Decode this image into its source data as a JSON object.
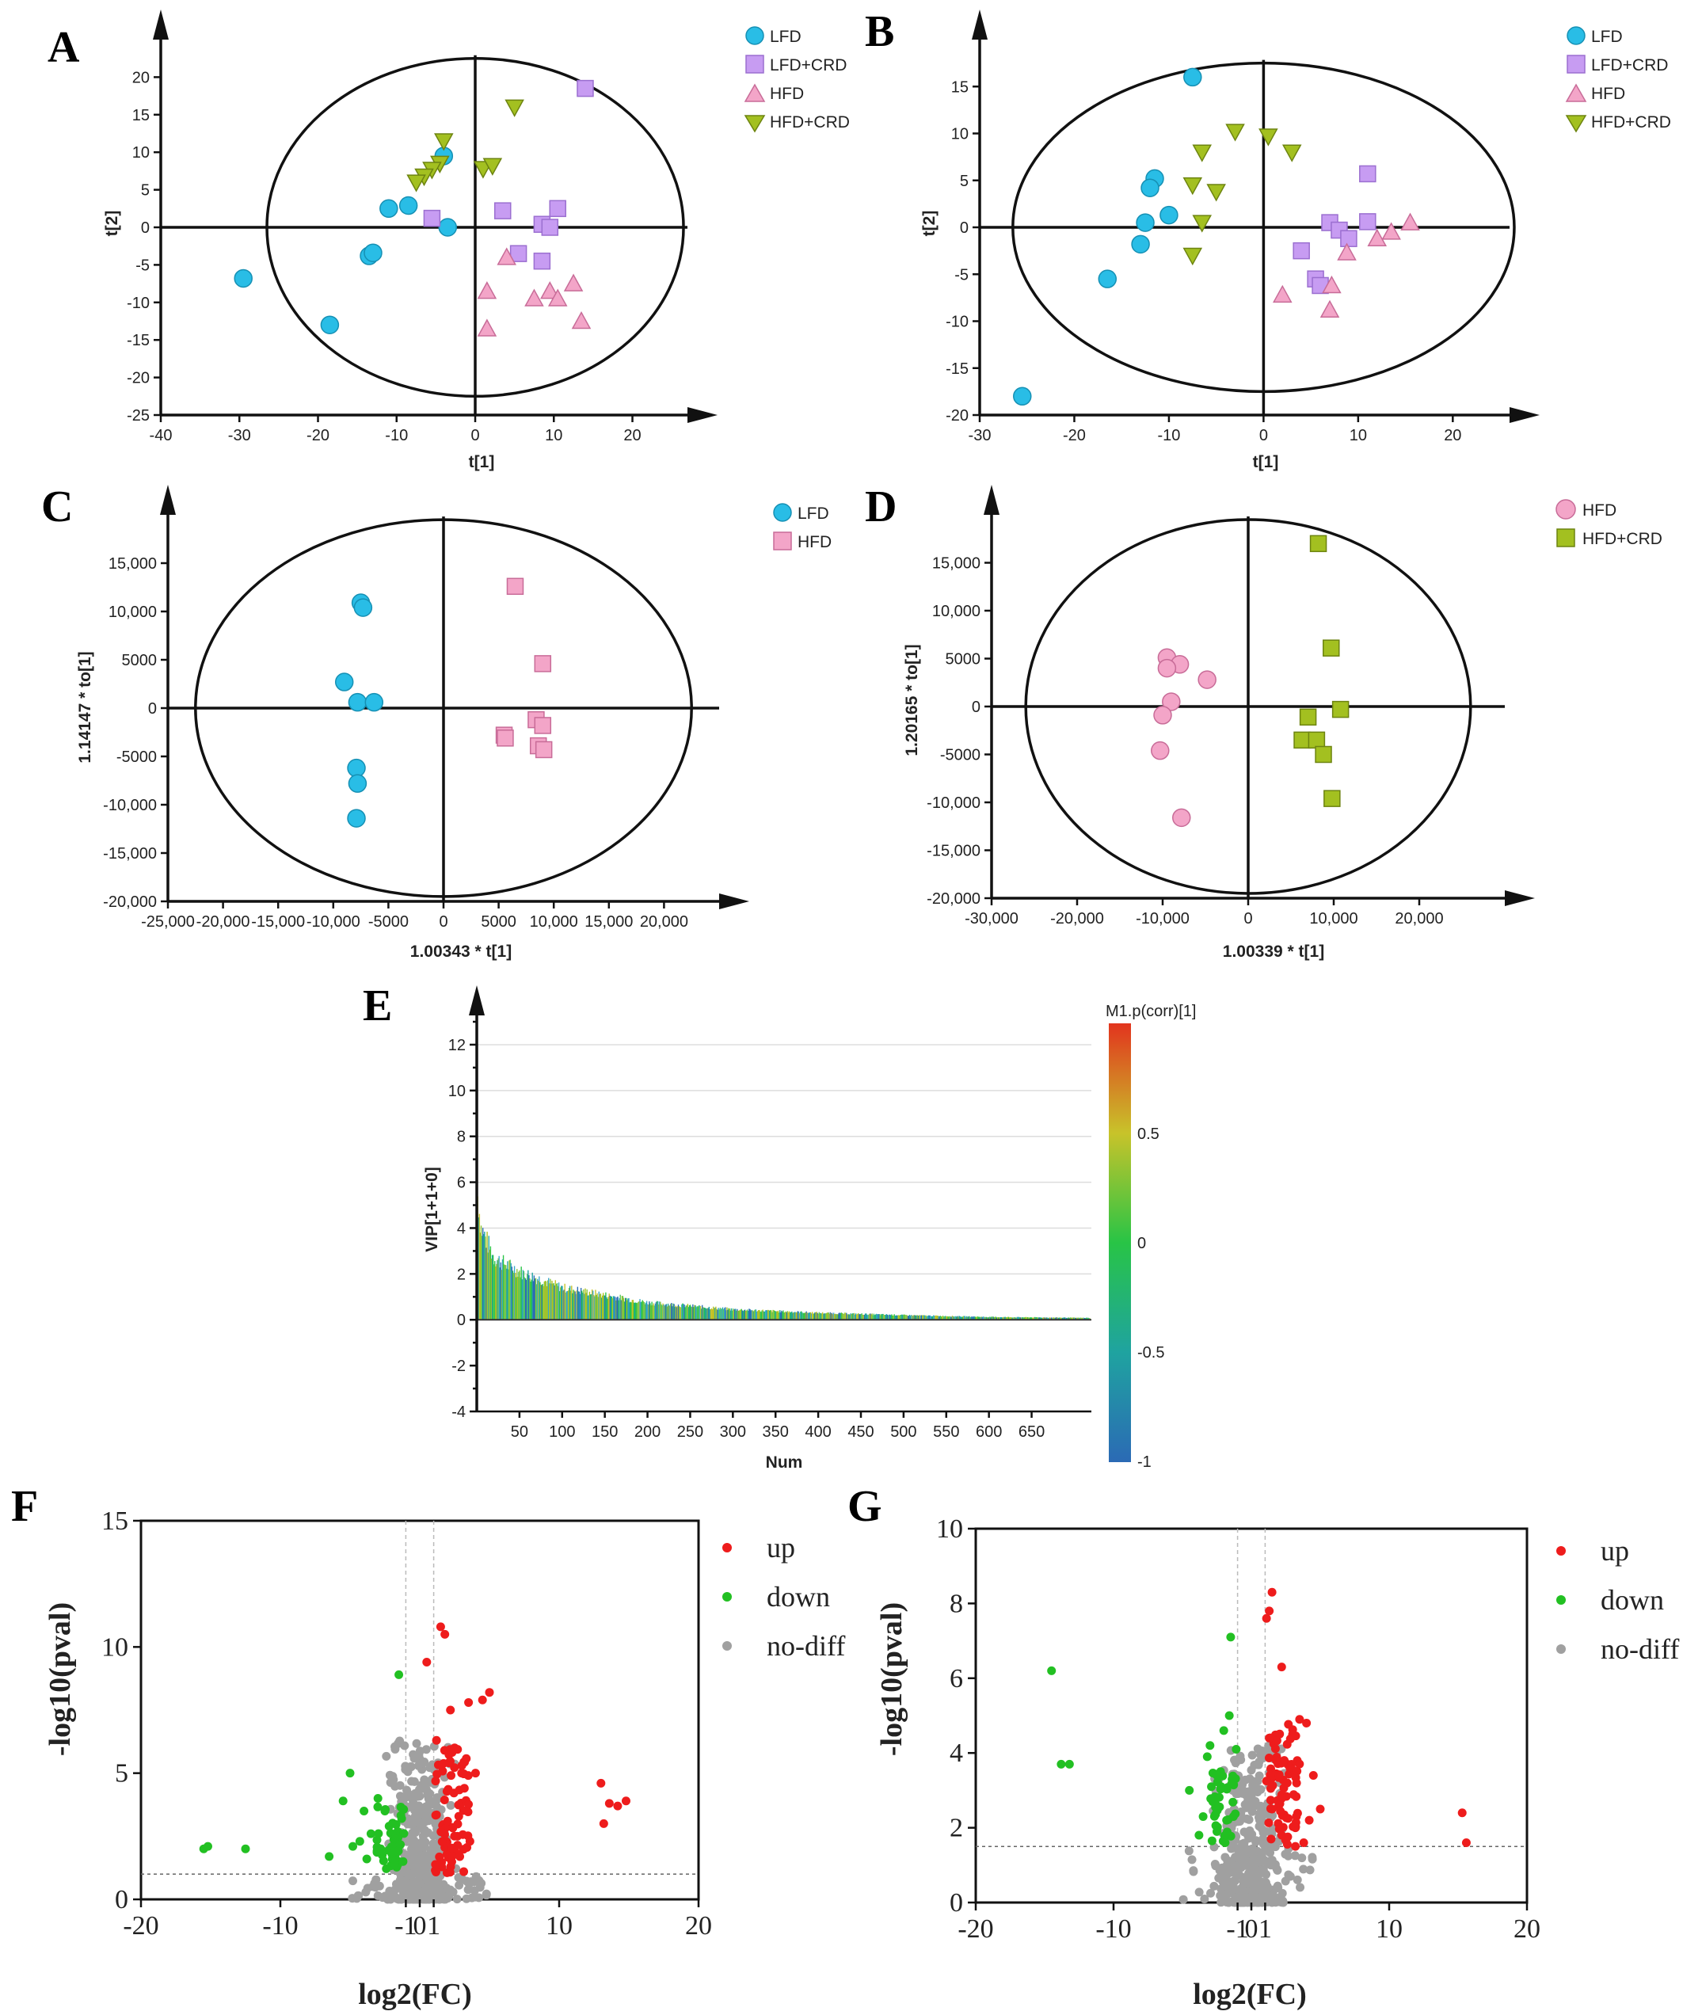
{
  "chart_data": [
    {
      "id": "A",
      "type": "scatter",
      "label": "A",
      "xlabel": "t[1]",
      "ylabel": "t[2]",
      "xlim": [
        -40,
        27
      ],
      "ylim": [
        -25,
        25
      ],
      "xticks": [
        "-40",
        "-30",
        "-20",
        "-10",
        "0",
        "10",
        "20"
      ],
      "yticks": [
        "-25",
        "-20",
        "-15",
        "-10",
        "-5",
        "0",
        "5",
        "10",
        "15",
        "20"
      ],
      "ellipse": {
        "cx": 0,
        "cy": 0,
        "rx": 26.5,
        "ry": 22.5
      },
      "series": [
        {
          "name": "LFD",
          "marker": "circle",
          "color": "#29bde6",
          "points": [
            [
              -29.5,
              -6.8
            ],
            [
              -18.5,
              -13
            ],
            [
              -13.5,
              -3.8
            ],
            [
              -13,
              -3.4
            ],
            [
              -11,
              2.5
            ],
            [
              -8.5,
              2.9
            ],
            [
              -4,
              9.5
            ],
            [
              -3.5,
              0
            ]
          ]
        },
        {
          "name": "LFD+CRD",
          "marker": "square",
          "color": "#c79cf2",
          "points": [
            [
              14,
              18.5
            ],
            [
              -5.5,
              1.2
            ],
            [
              3.5,
              2.2
            ],
            [
              5.5,
              -3.5
            ],
            [
              8.5,
              0.4
            ],
            [
              9.5,
              0
            ],
            [
              10.5,
              2.5
            ],
            [
              8.5,
              -4.5
            ]
          ]
        },
        {
          "name": "HFD",
          "marker": "triangle",
          "color": "#f3a5c8",
          "points": [
            [
              4,
              -4
            ],
            [
              1.5,
              -8.5
            ],
            [
              1.5,
              -13.5
            ],
            [
              7.5,
              -9.5
            ],
            [
              9.5,
              -8.5
            ],
            [
              10.5,
              -9.5
            ],
            [
              12.5,
              -7.5
            ],
            [
              13.5,
              -12.5
            ]
          ]
        },
        {
          "name": "HFD+CRD",
          "marker": "triangle-down",
          "color": "#a3c020",
          "points": [
            [
              5,
              16
            ],
            [
              -4,
              11.5
            ],
            [
              -4.5,
              8.5
            ],
            [
              -5.5,
              7.7
            ],
            [
              -6.5,
              6.8
            ],
            [
              -7.5,
              6
            ],
            [
              1,
              7.8
            ],
            [
              2.2,
              8.2
            ]
          ]
        }
      ]
    },
    {
      "id": "B",
      "type": "scatter",
      "label": "B",
      "xlabel": "t[1]",
      "ylabel": "t[2]",
      "xlim": [
        -30,
        26
      ],
      "ylim": [
        -20,
        20
      ],
      "xticks": [
        "-30",
        "-20",
        "-10",
        "0",
        "10",
        "20"
      ],
      "yticks": [
        "-20",
        "-15",
        "-10",
        "-5",
        "0",
        "5",
        "10",
        "15"
      ],
      "ellipse": {
        "cx": 0,
        "cy": 0,
        "rx": 26.5,
        "ry": 17.5
      },
      "series": [
        {
          "name": "LFD",
          "marker": "circle",
          "color": "#29bde6",
          "points": [
            [
              -7.5,
              16
            ],
            [
              -11.5,
              5.2
            ],
            [
              -12,
              4.2
            ],
            [
              -10,
              1.3
            ],
            [
              -12.5,
              0.5
            ],
            [
              -13,
              -1.8
            ],
            [
              -16.5,
              -5.5
            ],
            [
              -25.5,
              -18
            ]
          ]
        },
        {
          "name": "LFD+CRD",
          "marker": "square",
          "color": "#c79cf2",
          "points": [
            [
              11,
              5.7
            ],
            [
              7,
              0.5
            ],
            [
              11,
              0.6
            ],
            [
              8,
              -0.3
            ],
            [
              9,
              -1.2
            ],
            [
              4,
              -2.5
            ],
            [
              5.5,
              -5.5
            ],
            [
              6,
              -6.2
            ]
          ]
        },
        {
          "name": "HFD",
          "marker": "triangle",
          "color": "#f3a5c8",
          "points": [
            [
              15.5,
              0.5
            ],
            [
              13.5,
              -0.5
            ],
            [
              12,
              -1.2
            ],
            [
              8.8,
              -2.7
            ],
            [
              7.2,
              -6.2
            ],
            [
              7,
              -8.8
            ],
            [
              2,
              -7.2
            ]
          ]
        },
        {
          "name": "HFD+CRD",
          "marker": "triangle-down",
          "color": "#a3c020",
          "points": [
            [
              -3,
              10.2
            ],
            [
              0.5,
              9.7
            ],
            [
              3,
              8
            ],
            [
              -6.5,
              8
            ],
            [
              -7.5,
              4.5
            ],
            [
              -5,
              3.8
            ],
            [
              -6.5,
              0.5
            ],
            [
              -7.5,
              -3
            ]
          ]
        }
      ]
    },
    {
      "id": "C",
      "type": "scatter",
      "label": "C",
      "xlabel": "1.00343 * t[1]",
      "ylabel": "1.14147 * to[1]",
      "xlim": [
        -25000,
        25000
      ],
      "ylim": [
        -20000,
        20000
      ],
      "xticks": [
        "-25,000",
        "-20,000",
        "-15,000",
        "-10,000",
        "-5000",
        "0",
        "5000",
        "10,000",
        "15,000",
        "20,000"
      ],
      "yticks": [
        "-20,000",
        "-15,000",
        "-10,000",
        "-5000",
        "0",
        "5000",
        "10,000",
        "15,000"
      ],
      "ellipse": {
        "cx": 0,
        "cy": 0,
        "rx": 22500,
        "ry": 19500
      },
      "series": [
        {
          "name": "LFD",
          "marker": "circle",
          "color": "#29bde6",
          "points": [
            [
              -7500,
              10900
            ],
            [
              -7300,
              10400
            ],
            [
              -9000,
              2700
            ],
            [
              -7800,
              600
            ],
            [
              -6300,
              600
            ],
            [
              -7900,
              -6200
            ],
            [
              -7800,
              -7800
            ],
            [
              -7900,
              -11400
            ]
          ]
        },
        {
          "name": "HFD",
          "marker": "square",
          "color": "#f3a5c8",
          "points": [
            [
              6500,
              12600
            ],
            [
              9000,
              4600
            ],
            [
              8400,
              -1200
            ],
            [
              9000,
              -1800
            ],
            [
              5500,
              -2800
            ],
            [
              5600,
              -3100
            ],
            [
              8600,
              -3900
            ],
            [
              9100,
              -4300
            ]
          ]
        }
      ]
    },
    {
      "id": "D",
      "type": "scatter",
      "label": "D",
      "xlabel": "1.00339 * t[1]",
      "ylabel": "1.20165 * to[1]",
      "xlim": [
        -30000,
        30000
      ],
      "ylim": [
        -20000,
        20000
      ],
      "xticks": [
        "-30,000",
        "-20,000",
        "-10,000",
        "0",
        "10,000",
        "20,000"
      ],
      "yticks": [
        "-20,000",
        "-15,000",
        "-10,000",
        "-5000",
        "0",
        "5000",
        "10,000",
        "15,000"
      ],
      "ellipse": {
        "cx": 0,
        "cy": 0,
        "rx": 26000,
        "ry": 19500
      },
      "series": [
        {
          "name": "HFD",
          "marker": "circle",
          "color": "#f3a5c8",
          "points": [
            [
              -9500,
              5100
            ],
            [
              -8000,
              4400
            ],
            [
              -9500,
              4000
            ],
            [
              -4800,
              2800
            ],
            [
              -9000,
              500
            ],
            [
              -10000,
              -900
            ],
            [
              -10300,
              -4600
            ],
            [
              -7800,
              -11600
            ]
          ]
        },
        {
          "name": "HFD+CRD",
          "marker": "square",
          "color": "#a3c020",
          "points": [
            [
              8200,
              17000
            ],
            [
              9700,
              6100
            ],
            [
              10800,
              -300
            ],
            [
              7000,
              -1100
            ],
            [
              6300,
              -3500
            ],
            [
              8000,
              -3500
            ],
            [
              8800,
              -5000
            ],
            [
              9800,
              -9600
            ]
          ]
        }
      ]
    },
    {
      "id": "E",
      "type": "bar",
      "label": "E",
      "xlabel": "Num",
      "ylabel": "VIP[1+1+0]",
      "xlim": [
        0,
        720
      ],
      "ylim": [
        -4,
        13
      ],
      "xticks": [
        "50",
        "100",
        "150",
        "200",
        "250",
        "300",
        "350",
        "400",
        "450",
        "500",
        "550",
        "600",
        "650"
      ],
      "yticks": [
        "-4",
        "-2",
        "0",
        "2",
        "4",
        "6",
        "8",
        "10",
        "12"
      ],
      "colorbar": {
        "title": "M1.p(corr)[1]",
        "ticks": [
          "-1",
          "-0.5",
          "0",
          "0.5"
        ]
      },
      "decay": {
        "x": [
          1,
          5,
          20,
          50,
          100,
          200,
          300,
          400,
          500,
          600,
          720
        ],
        "vip": [
          5.4,
          4.0,
          2.7,
          2.1,
          1.4,
          0.75,
          0.45,
          0.3,
          0.2,
          0.12,
          0.08
        ]
      }
    },
    {
      "id": "F",
      "type": "scatter",
      "label": "F",
      "xlabel": "log2(FC)",
      "ylabel": "-log10(pval)",
      "xlim": [
        -20,
        20
      ],
      "ylim": [
        0,
        15
      ],
      "xticks": [
        "-20",
        "-10",
        "-1",
        "0",
        "1",
        "10",
        "20"
      ],
      "yticks": [
        "0",
        "5",
        "10",
        "15"
      ],
      "threshold_y": 1.0,
      "legend": [
        "up",
        "down",
        "no-diff"
      ],
      "series": [
        {
          "name": "up",
          "color": "#ee1c1c",
          "points": [
            [
              1.5,
              10.8
            ],
            [
              1.8,
              10.5
            ],
            [
              0.5,
              9.4
            ],
            [
              3.5,
              7.8
            ],
            [
              4.5,
              7.9
            ],
            [
              5,
              8.2
            ],
            [
              2.2,
              7.5
            ],
            [
              13,
              4.6
            ],
            [
              13.6,
              3.8
            ],
            [
              14.2,
              3.7
            ],
            [
              14.8,
              3.9
            ],
            [
              13.2,
              3
            ],
            [
              3,
              5
            ],
            [
              4,
              5
            ],
            [
              2.5,
              6
            ],
            [
              3.2,
              4.4
            ],
            [
              2.7,
              2.5
            ],
            [
              3.6,
              2.3
            ],
            [
              1.2,
              6.3
            ],
            [
              2,
              3.1
            ]
          ]
        },
        {
          "name": "down",
          "color": "#22c022",
          "points": [
            [
              -15.5,
              2
            ],
            [
              -15.2,
              2.1
            ],
            [
              -12.5,
              2
            ],
            [
              -5,
              5
            ],
            [
              -4,
              3.5
            ],
            [
              -3,
              4
            ],
            [
              -4.8,
              2.1
            ],
            [
              -5.5,
              3.9
            ],
            [
              -3.5,
              2.6
            ],
            [
              -2.5,
              3.5
            ],
            [
              -1.5,
              8.9
            ],
            [
              -6.5,
              1.7
            ],
            [
              -3.8,
              1.6
            ],
            [
              -2.8,
              2
            ],
            [
              -2,
              1.8
            ],
            [
              -1.3,
              3.2
            ],
            [
              -1.8,
              2.4
            ],
            [
              -1.2,
              1.5
            ],
            [
              -2.2,
              2.9
            ],
            [
              -4.3,
              2.3
            ]
          ]
        }
      ]
    },
    {
      "id": "G",
      "type": "scatter",
      "label": "G",
      "xlabel": "log2(FC)",
      "ylabel": "-log10(pval)",
      "xlim": [
        -20,
        20
      ],
      "ylim": [
        0,
        10
      ],
      "xticks": [
        "-20",
        "-10",
        "-1",
        "0",
        "1",
        "10",
        "20"
      ],
      "yticks": [
        "0",
        "2",
        "4",
        "6",
        "8",
        "10"
      ],
      "threshold_y": 1.5,
      "legend": [
        "up",
        "down",
        "no-diff"
      ],
      "series": [
        {
          "name": "up",
          "color": "#ee1c1c",
          "points": [
            [
              1.5,
              8.3
            ],
            [
              1.3,
              7.8
            ],
            [
              1.1,
              7.6
            ],
            [
              2.2,
              6.3
            ],
            [
              3.5,
              4.9
            ],
            [
              4,
              4.8
            ],
            [
              3,
              4.5
            ],
            [
              4.5,
              3.4
            ],
            [
              5,
              2.5
            ],
            [
              15.3,
              2.4
            ],
            [
              15.6,
              1.6
            ],
            [
              1.8,
              3.8
            ],
            [
              2.6,
              3.2
            ],
            [
              3.2,
              2
            ],
            [
              1.5,
              2.5
            ],
            [
              3.8,
              1.6
            ],
            [
              2.2,
              1.8
            ],
            [
              2.8,
              3.6
            ],
            [
              4.2,
              2.2
            ],
            [
              1.3,
              4.4
            ]
          ]
        },
        {
          "name": "down",
          "color": "#22c022",
          "points": [
            [
              -14.5,
              6.2
            ],
            [
              -13.8,
              3.7
            ],
            [
              -13.2,
              3.7
            ],
            [
              -1.5,
              7.1
            ],
            [
              -3.2,
              3.9
            ],
            [
              -4.5,
              3
            ],
            [
              -3,
              4.2
            ],
            [
              -2.5,
              3.4
            ],
            [
              -1.6,
              5
            ],
            [
              -2,
              4.6
            ],
            [
              -1.3,
              2.3
            ],
            [
              -2.8,
              2.7
            ],
            [
              -3.5,
              2.3
            ],
            [
              -2.2,
              3.1
            ],
            [
              -1.9,
              1.6
            ],
            [
              -1.4,
              3.3
            ],
            [
              -3.8,
              1.8
            ],
            [
              -2.5,
              1.9
            ],
            [
              -1.8,
              2.2
            ],
            [
              -1.1,
              4.1
            ]
          ]
        }
      ]
    }
  ]
}
